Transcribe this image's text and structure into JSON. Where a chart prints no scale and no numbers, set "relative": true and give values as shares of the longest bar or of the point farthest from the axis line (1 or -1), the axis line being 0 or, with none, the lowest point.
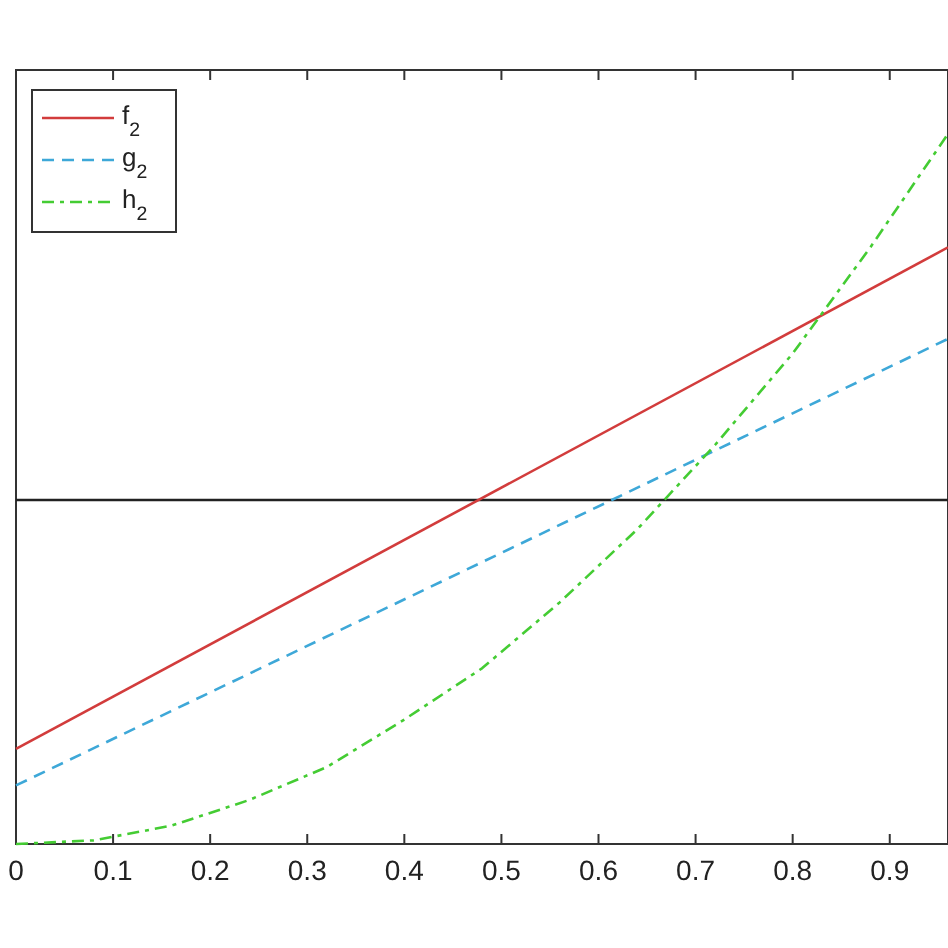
{
  "chart_data": {
    "type": "line",
    "relative": true,
    "xlim": [
      0,
      0.96
    ],
    "xticks": [
      0,
      0.1,
      0.2,
      0.3,
      0.4,
      0.5,
      0.6,
      0.7,
      0.8,
      0.9
    ],
    "legend": "top left",
    "grid": false,
    "series": [
      {
        "name": "f$_{2}$",
        "color": "#d23c3c",
        "line_style": "solid",
        "x": [
          0,
          0.96
        ],
        "values": [
          -0.68,
          0.69
        ]
      },
      {
        "name": "g$_{2}$",
        "color": "#3ea8d8",
        "line_style": "dashed",
        "x": [
          0,
          0.96
        ],
        "values": [
          -0.78,
          0.44
        ]
      },
      {
        "name": "h$_{2}$",
        "color": "#44cc33",
        "line_style": "dashdot",
        "x": [
          0,
          0.08,
          0.16,
          0.24,
          0.32,
          0.4,
          0.48,
          0.56,
          0.64,
          0.72,
          0.8,
          0.88,
          0.96
        ],
        "values": [
          -0.94,
          -0.93,
          -0.89,
          -0.82,
          -0.73,
          -0.6,
          -0.46,
          -0.28,
          -0.08,
          0.15,
          0.4,
          0.69,
          1
        ]
      }
    ]
  }
}
